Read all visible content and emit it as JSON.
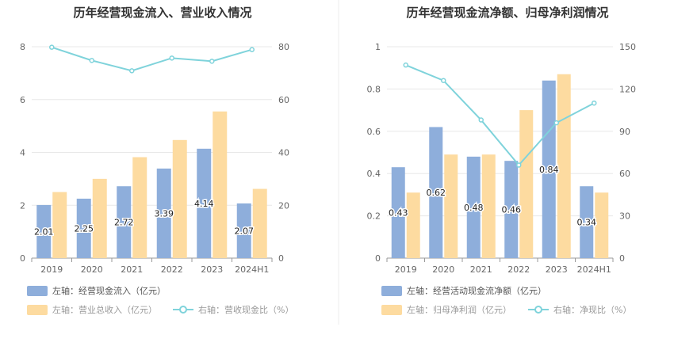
{
  "chart_data": [
    {
      "type": "bar",
      "title": "历年经营现金流入、营业收入情况",
      "categories": [
        "2019",
        "2020",
        "2021",
        "2022",
        "2023",
        "2024H1"
      ],
      "left_axis": {
        "ylim": [
          0,
          8
        ],
        "ticks": [
          "0",
          "2",
          "4",
          "6",
          "8"
        ]
      },
      "right_axis": {
        "ylim": [
          0,
          80
        ],
        "ticks": [
          "0",
          "20",
          "40",
          "60",
          "80"
        ]
      },
      "series": [
        {
          "name": "左轴：经营现金流入（亿元）",
          "axis": "left",
          "kind": "bar",
          "color": "#8eaedb",
          "values": [
            2.01,
            2.25,
            2.72,
            3.39,
            4.14,
            2.07
          ],
          "labels": [
            "2.01",
            "2.25",
            "2.72",
            "3.39",
            "4.14",
            "2.07"
          ]
        },
        {
          "name": "左轴：营业总收入（亿元）",
          "axis": "left",
          "kind": "bar",
          "color": "#fddba0",
          "values": [
            2.5,
            3.0,
            3.82,
            4.47,
            5.55,
            2.62
          ]
        },
        {
          "name": "右轴：营收现金比（%）",
          "axis": "right",
          "kind": "line",
          "color": "#7fd3db",
          "values": [
            79.8,
            74.8,
            70.9,
            75.7,
            74.5,
            78.9
          ]
        }
      ]
    },
    {
      "type": "bar",
      "title": "历年经营现金流净额、归母净利润情况",
      "categories": [
        "2019",
        "2020",
        "2021",
        "2022",
        "2023",
        "2024H1"
      ],
      "left_axis": {
        "ylim": [
          0,
          1
        ],
        "ticks": [
          "0",
          "0.2",
          "0.4",
          "0.6",
          "0.8",
          "1"
        ]
      },
      "right_axis": {
        "ylim": [
          0,
          150
        ],
        "ticks": [
          "0",
          "30",
          "60",
          "90",
          "120",
          "150"
        ]
      },
      "series": [
        {
          "name": "左轴：经营活动现金流净额（亿元）",
          "axis": "left",
          "kind": "bar",
          "color": "#8eaedb",
          "values": [
            0.43,
            0.62,
            0.48,
            0.46,
            0.84,
            0.34
          ],
          "labels": [
            "0.43",
            "0.62",
            "0.48",
            "0.46",
            "0.84",
            "0.34"
          ]
        },
        {
          "name": "左轴：归母净利润（亿元）",
          "axis": "left",
          "kind": "bar",
          "color": "#fddba0",
          "values": [
            0.31,
            0.49,
            0.49,
            0.7,
            0.87,
            0.31
          ]
        },
        {
          "name": "右轴：净现比（%）",
          "axis": "right",
          "kind": "line",
          "color": "#7fd3db",
          "values": [
            137,
            126,
            98,
            66,
            96,
            110
          ]
        }
      ]
    }
  ]
}
